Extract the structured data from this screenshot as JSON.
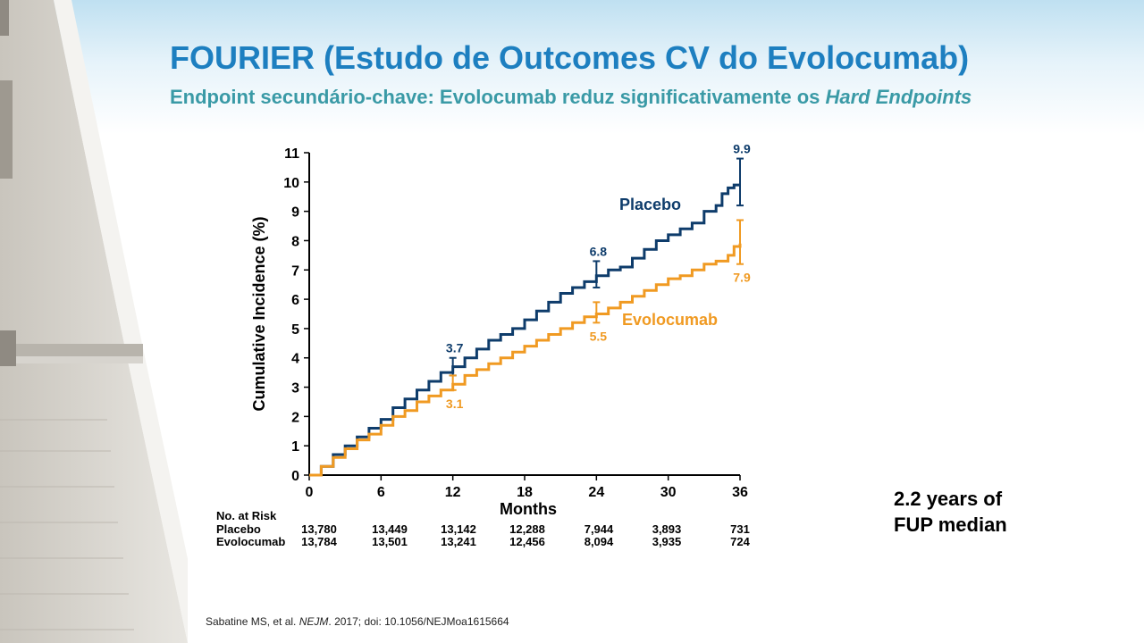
{
  "header": {
    "title": "FOURIER (Estudo de Outcomes CV do Evolocumab)",
    "subtitle_text": "Endpoint secundário-chave: Evolocumab reduz significativamente os ",
    "subtitle_emph": "Hard Endpoints"
  },
  "colors": {
    "title": "#1d7fc0",
    "subtitle": "#3a9aa6",
    "placebo": "#0e3c6b",
    "evolocumab": "#f09a22"
  },
  "chart_data": {
    "type": "line",
    "title": "",
    "xlabel": "Months",
    "ylabel": "Cumulative Incidence (%)",
    "xlim": [
      0,
      36
    ],
    "ylim": [
      0,
      11
    ],
    "xticks": [
      0,
      6,
      12,
      18,
      24,
      30,
      36
    ],
    "yticks": [
      0,
      1,
      2,
      3,
      4,
      5,
      6,
      7,
      8,
      9,
      10,
      11
    ],
    "grid": false,
    "legend": "inline labels",
    "series": [
      {
        "name": "Placebo",
        "color": "#0e3c6b",
        "x": [
          0,
          1,
          2,
          3,
          4,
          5,
          6,
          7,
          8,
          9,
          10,
          11,
          12,
          13,
          14,
          15,
          16,
          17,
          18,
          19,
          20,
          21,
          22,
          23,
          24,
          25,
          26,
          27,
          28,
          29,
          30,
          31,
          32,
          33,
          34,
          34.5,
          35,
          35.5,
          36
        ],
        "values": [
          0,
          0.3,
          0.7,
          1.0,
          1.3,
          1.6,
          1.9,
          2.3,
          2.6,
          2.9,
          3.2,
          3.5,
          3.7,
          4.0,
          4.3,
          4.6,
          4.8,
          5.0,
          5.3,
          5.6,
          5.9,
          6.2,
          6.4,
          6.6,
          6.8,
          7.0,
          7.1,
          7.4,
          7.7,
          8.0,
          8.2,
          8.4,
          8.6,
          9.0,
          9.2,
          9.6,
          9.8,
          9.9,
          9.9
        ],
        "endpoint_labels": [
          {
            "x": 12,
            "value": 3.7,
            "label": "3.7",
            "ci": [
              3.4,
              4.0
            ]
          },
          {
            "x": 24,
            "value": 6.8,
            "label": "6.8",
            "ci": [
              6.4,
              7.3
            ]
          },
          {
            "x": 36,
            "value": 9.9,
            "label": "9.9",
            "ci": [
              9.2,
              10.8
            ]
          }
        ]
      },
      {
        "name": "Evolocumab",
        "color": "#f09a22",
        "x": [
          0,
          1,
          2,
          3,
          4,
          5,
          6,
          7,
          8,
          9,
          10,
          11,
          12,
          13,
          14,
          15,
          16,
          17,
          18,
          19,
          20,
          21,
          22,
          23,
          24,
          25,
          26,
          27,
          28,
          29,
          30,
          31,
          32,
          33,
          34,
          35,
          35.5,
          36
        ],
        "values": [
          0,
          0.3,
          0.6,
          0.9,
          1.2,
          1.4,
          1.7,
          2.0,
          2.2,
          2.5,
          2.7,
          2.9,
          3.1,
          3.4,
          3.6,
          3.8,
          4.0,
          4.2,
          4.4,
          4.6,
          4.8,
          5.0,
          5.2,
          5.4,
          5.5,
          5.7,
          5.9,
          6.1,
          6.3,
          6.5,
          6.7,
          6.8,
          7.0,
          7.2,
          7.3,
          7.5,
          7.8,
          7.9
        ],
        "endpoint_labels": [
          {
            "x": 12,
            "value": 3.1,
            "label": "3.1",
            "ci": [
              2.9,
              3.4
            ]
          },
          {
            "x": 24,
            "value": 5.5,
            "label": "5.5",
            "ci": [
              5.2,
              5.9
            ]
          },
          {
            "x": 36,
            "value": 7.9,
            "label": "7.9",
            "ci": [
              7.2,
              8.7
            ]
          }
        ]
      }
    ],
    "risk_table": {
      "title": "No. at Risk",
      "rows": [
        {
          "label": "Placebo",
          "values": [
            "13,780",
            "13,449",
            "13,142",
            "12,288",
            "7,944",
            "3,893",
            "731"
          ]
        },
        {
          "label": "Evolocumab",
          "values": [
            "13,784",
            "13,501",
            "13,241",
            "12,456",
            "8,094",
            "3,935",
            "724"
          ]
        }
      ]
    }
  },
  "side_note": {
    "line1": "2.2 years of",
    "line2": "FUP median"
  },
  "citation": {
    "authors": "Sabatine MS, et al. ",
    "journal": "NEJM",
    "rest": ". 2017; doi: 10.1056/NEJMoa1615664"
  }
}
